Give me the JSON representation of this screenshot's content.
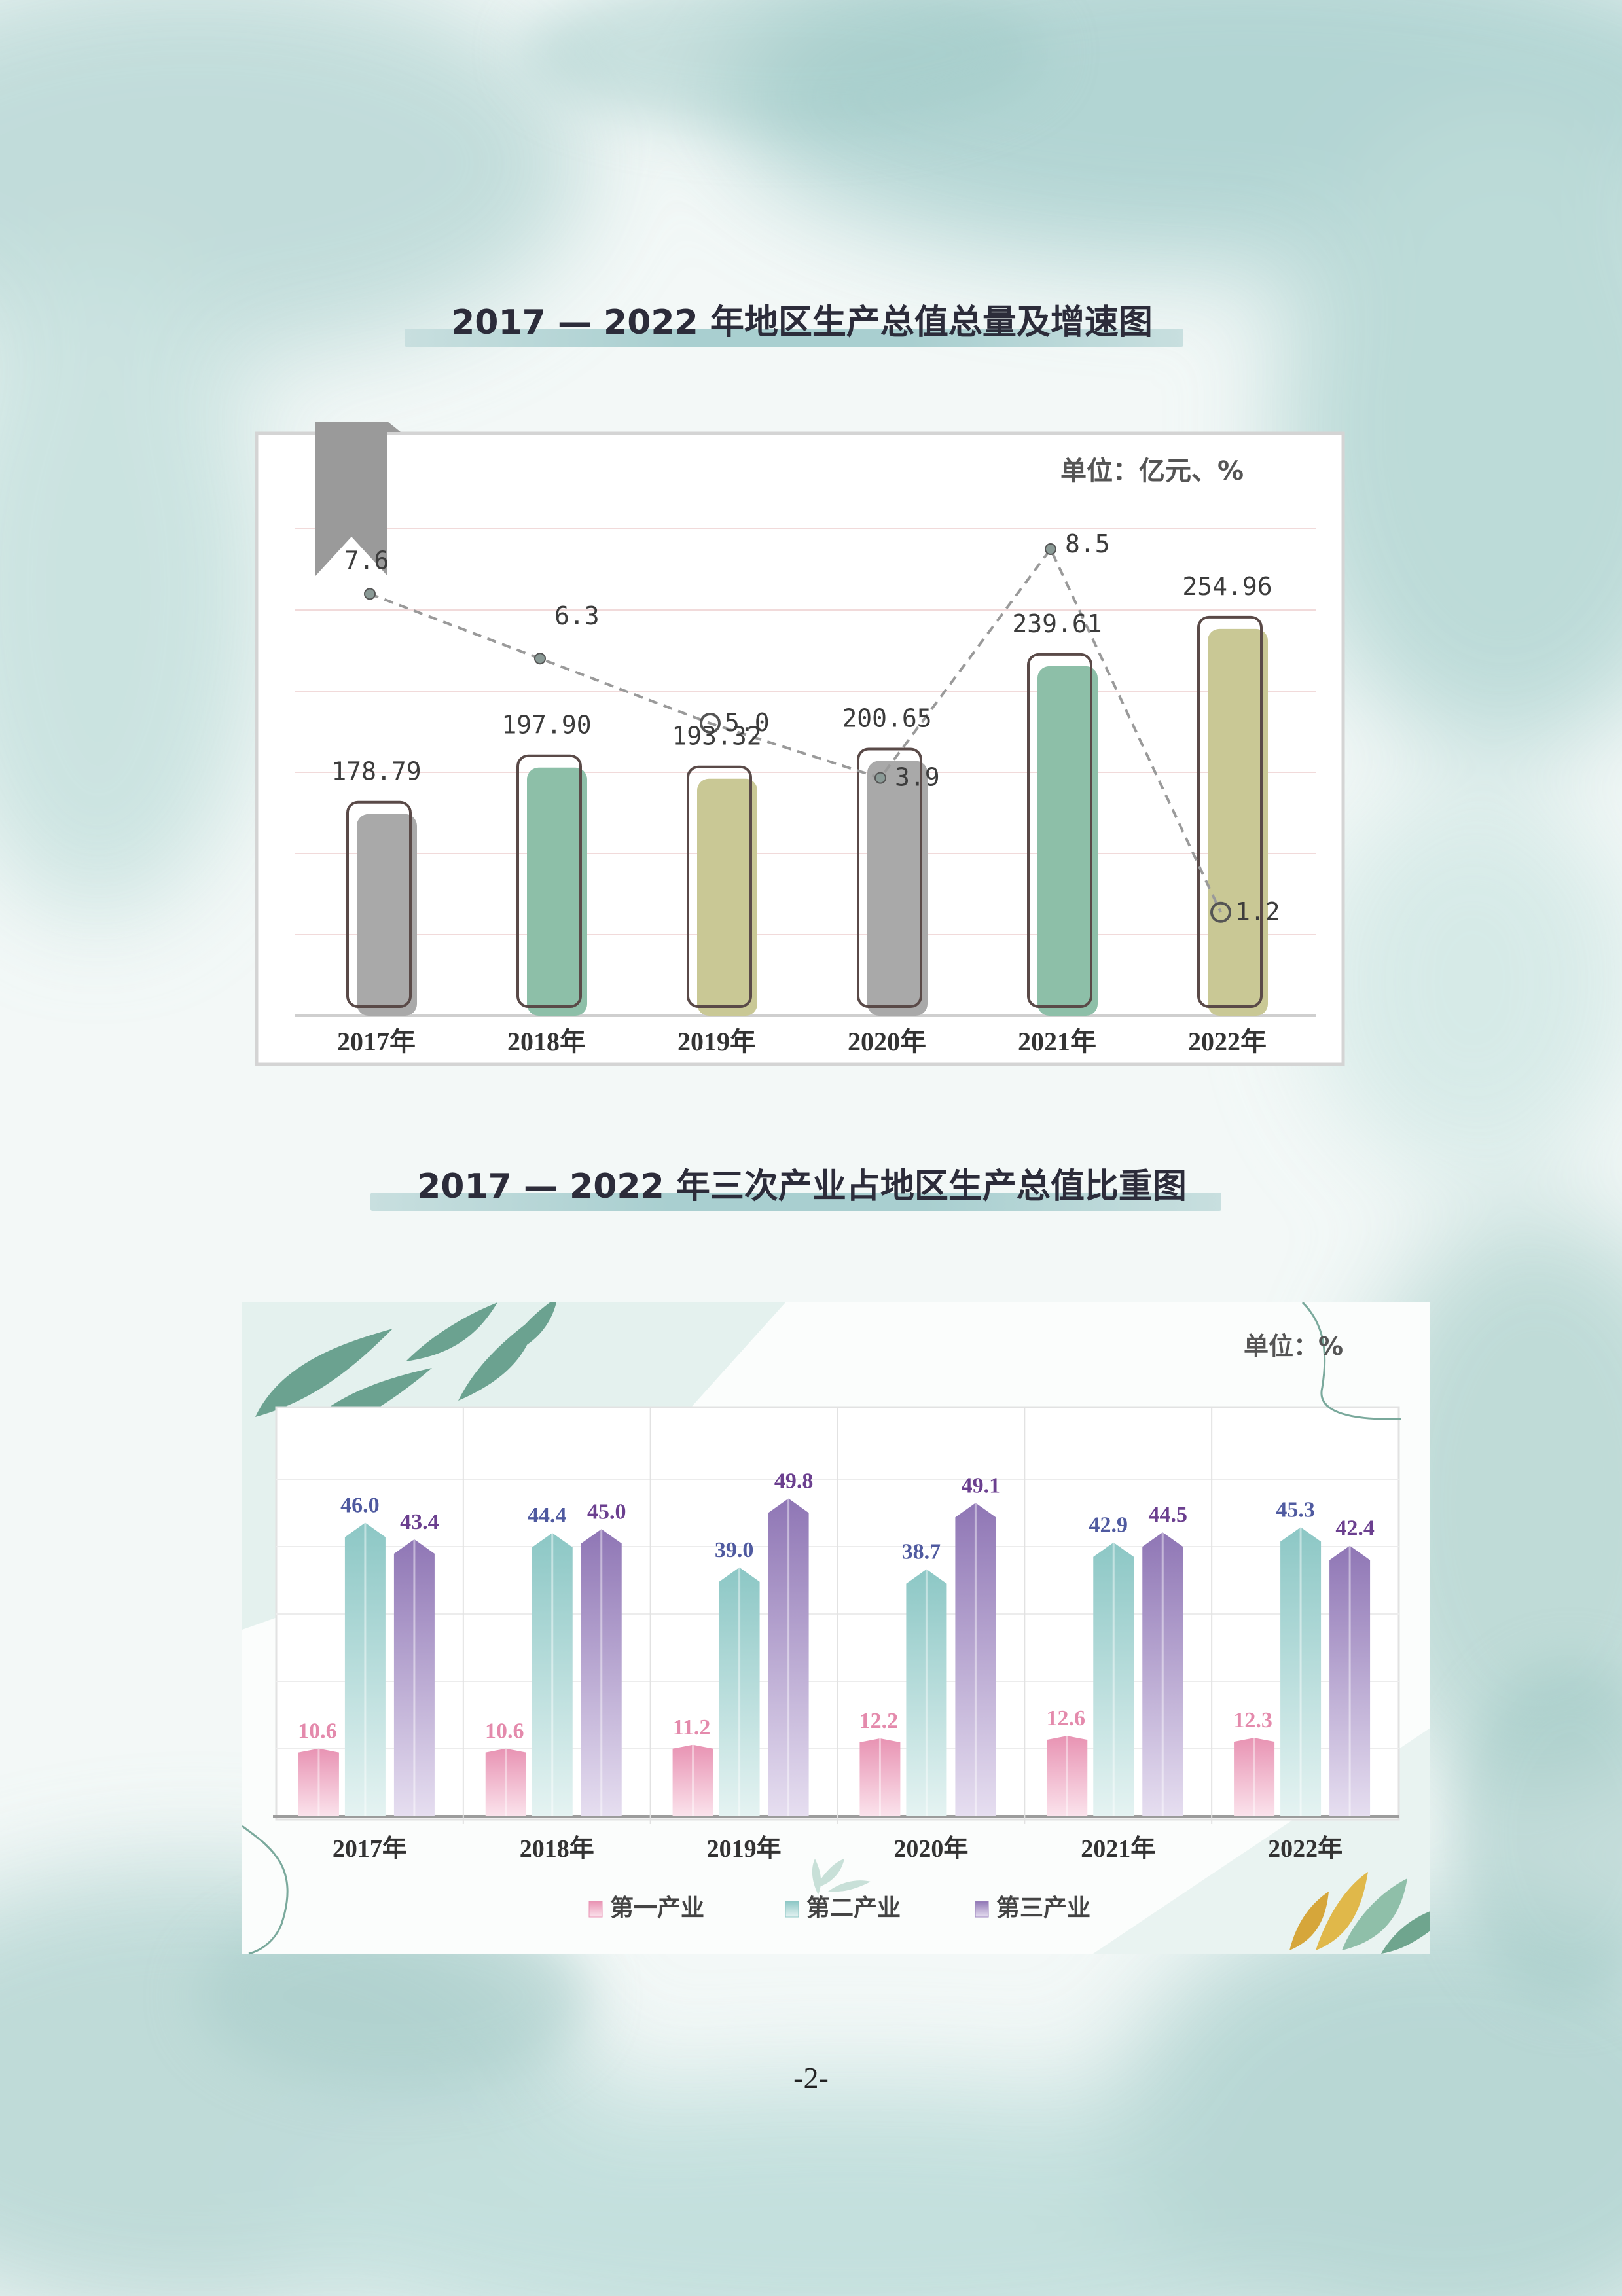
{
  "page": {
    "number": "-2-"
  },
  "chart_data": [
    {
      "type": "bar",
      "title": "2017 — 2022 年地区生产总值总量及增速图",
      "unit_label": "单位：亿元、%",
      "categories": [
        "2017年",
        "2018年",
        "2019年",
        "2020年",
        "2021年",
        "2022年"
      ],
      "series": [
        {
          "name": "",
          "type": "bar",
          "values": [
            178.79,
            197.9,
            193.32,
            200.65,
            239.61,
            254.96
          ]
        },
        {
          "name": "",
          "type": "line",
          "values": [
            7.6,
            6.3,
            5.0,
            3.9,
            8.5,
            1.2
          ]
        }
      ],
      "value_labels": [
        "178.79",
        "197.90",
        "193.32",
        "200.65",
        "239.61",
        "254.96"
      ],
      "rate_labels": [
        "7.6",
        "6.3",
        "5.0",
        "3.9",
        "8.5",
        "1.2"
      ],
      "bar_colors": [
        "#a9a9a9",
        "#8dbfa8",
        "#c9c895",
        "#a9a9a9",
        "#8dbfa8",
        "#c9c895"
      ],
      "ylim_bar": [
        0,
        270
      ],
      "ylim_rate": [
        0,
        10
      ],
      "grid": true,
      "legend": "none"
    },
    {
      "type": "bar",
      "title": "2017 — 2022 年三次产业占地区生产总值比重图",
      "unit_label": "单位：%",
      "categories": [
        "2017年",
        "2018年",
        "2019年",
        "2020年",
        "2021年",
        "2022年"
      ],
      "series": [
        {
          "name": "第一产业",
          "color": "#e893b3",
          "values": [
            10.6,
            10.6,
            11.2,
            12.2,
            12.6,
            12.3
          ]
        },
        {
          "name": "第二产业",
          "color": "#8cc7c5",
          "values": [
            46.0,
            44.4,
            39.0,
            38.7,
            42.9,
            45.3
          ]
        },
        {
          "name": "第三产业",
          "color": "#9b84bd",
          "values": [
            43.4,
            45.0,
            49.8,
            49.1,
            44.5,
            42.4
          ]
        }
      ],
      "label_colors": [
        "#e48aac",
        "#4f5aa0",
        "#6b3f8f"
      ],
      "ylim": [
        0,
        60
      ],
      "grid": true,
      "legend": "bottom"
    }
  ]
}
